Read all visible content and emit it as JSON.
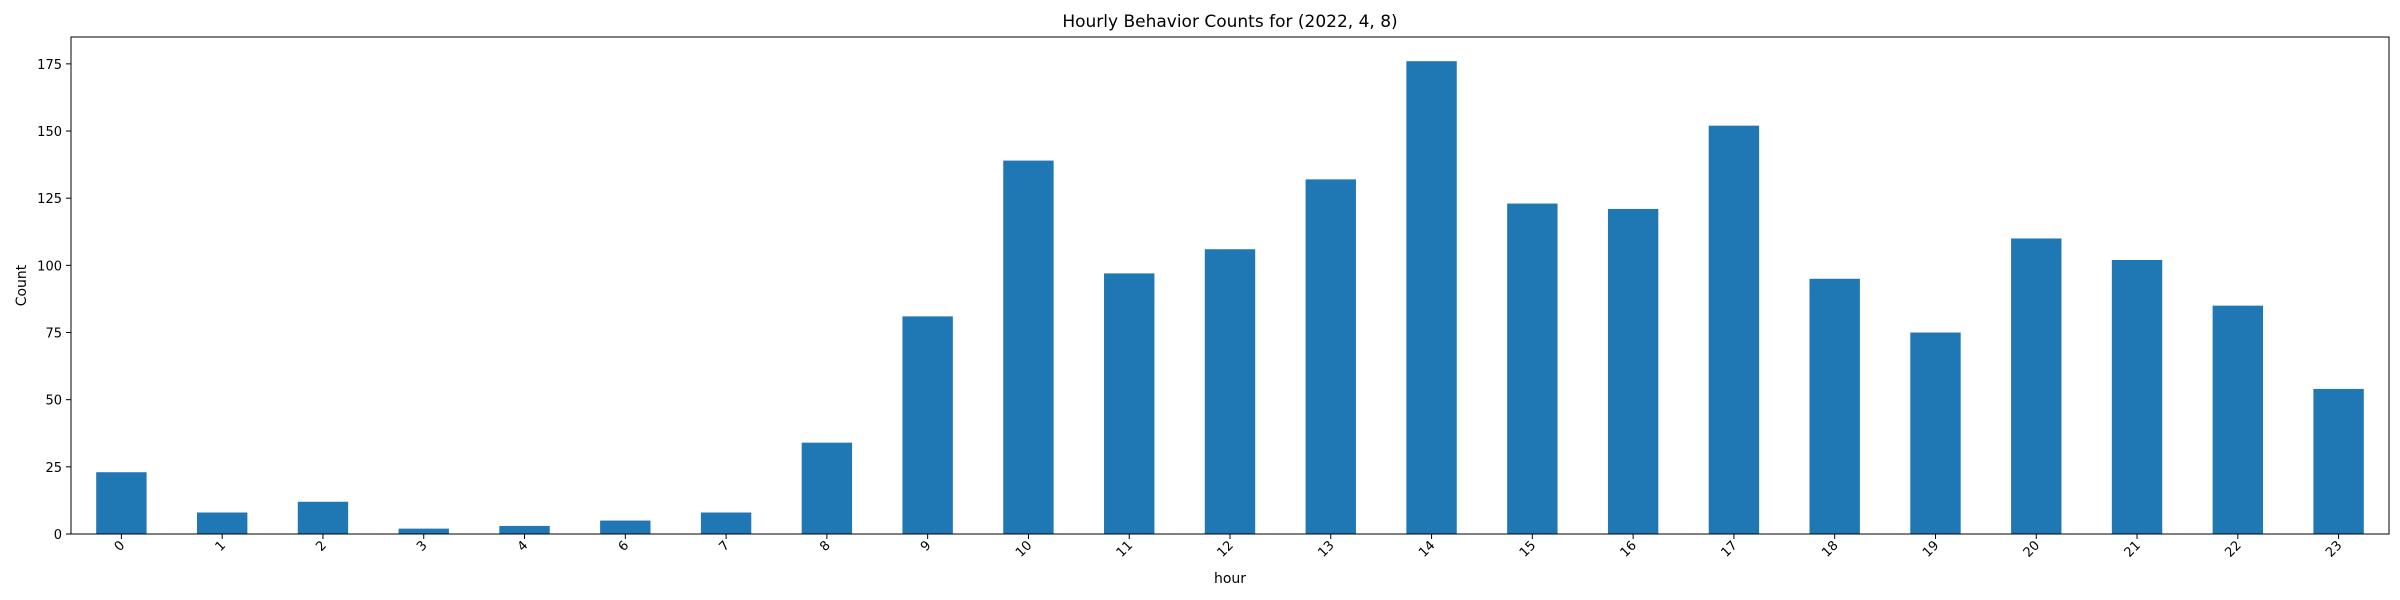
{
  "chart_data": {
    "type": "bar",
    "title": "Hourly Behavior Counts for (2022, 4, 8)",
    "xlabel": "hour",
    "ylabel": "Count",
    "categories": [
      "0",
      "1",
      "2",
      "3",
      "4",
      "6",
      "7",
      "8",
      "9",
      "10",
      "11",
      "12",
      "13",
      "14",
      "15",
      "16",
      "17",
      "18",
      "19",
      "20",
      "21",
      "22",
      "23"
    ],
    "values": [
      23,
      8,
      12,
      2,
      3,
      5,
      8,
      34,
      81,
      139,
      97,
      106,
      132,
      176,
      123,
      121,
      152,
      95,
      75,
      110,
      102,
      85,
      54
    ],
    "ylim": [
      0,
      185
    ],
    "yticks": [
      0,
      25,
      50,
      75,
      100,
      125,
      150,
      175
    ],
    "bar_color": "#1f77b4",
    "grid": false,
    "legend": "none"
  }
}
